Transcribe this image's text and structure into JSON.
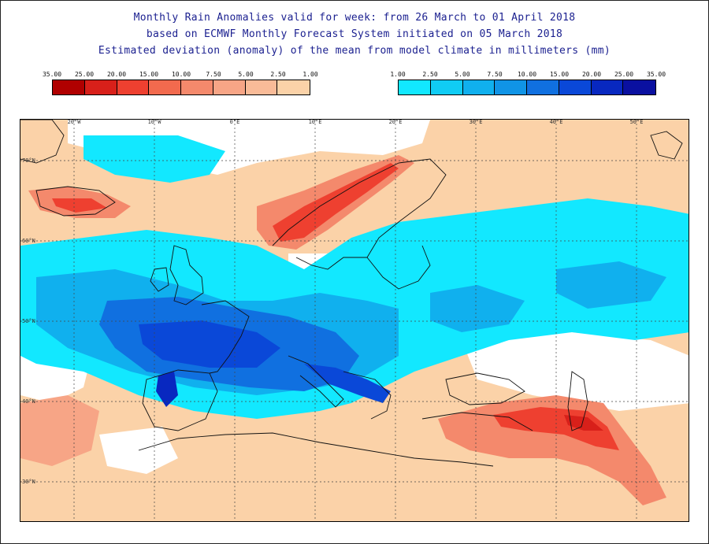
{
  "title": {
    "line1": "Monthly Rain Anomalies valid for week: from 26 March to 01 April 2018",
    "line2": "based on ECMWF Monthly Forecast System initiated on 05 March 2018",
    "line3": "Estimated deviation (anomaly) of the mean from model climate in millimeters (mm)"
  },
  "legend_dry": {
    "labels": [
      "35.00",
      "25.00",
      "20.00",
      "15.00",
      "10.00",
      "7.50",
      "5.00",
      "2.50",
      "1.00"
    ],
    "colors": [
      "#b00000",
      "#d8201a",
      "#ee4030",
      "#f26a4e",
      "#f4896c",
      "#f7a586",
      "#f9bb98",
      "#fbd2a8"
    ]
  },
  "legend_wet": {
    "labels": [
      "1.00",
      "2.50",
      "5.00",
      "7.50",
      "10.00",
      "15.00",
      "20.00",
      "25.00",
      "35.00"
    ],
    "colors": [
      "#12e8ff",
      "#10ccf4",
      "#10b0ee",
      "#1094e6",
      "#1070e0",
      "#0a48d8",
      "#0828c0",
      "#0a10a0"
    ]
  },
  "map": {
    "lon_labels": [
      "20°W",
      "10°W",
      "0°E",
      "10°E",
      "20°E",
      "30°E",
      "40°E",
      "50°E"
    ],
    "lat_labels": [
      "70°N",
      "60°N",
      "50°N",
      "40°N",
      "30°N"
    ]
  },
  "colors": {
    "title": "#1a1f8f",
    "graticule": "#444444",
    "coast": "#111111"
  }
}
